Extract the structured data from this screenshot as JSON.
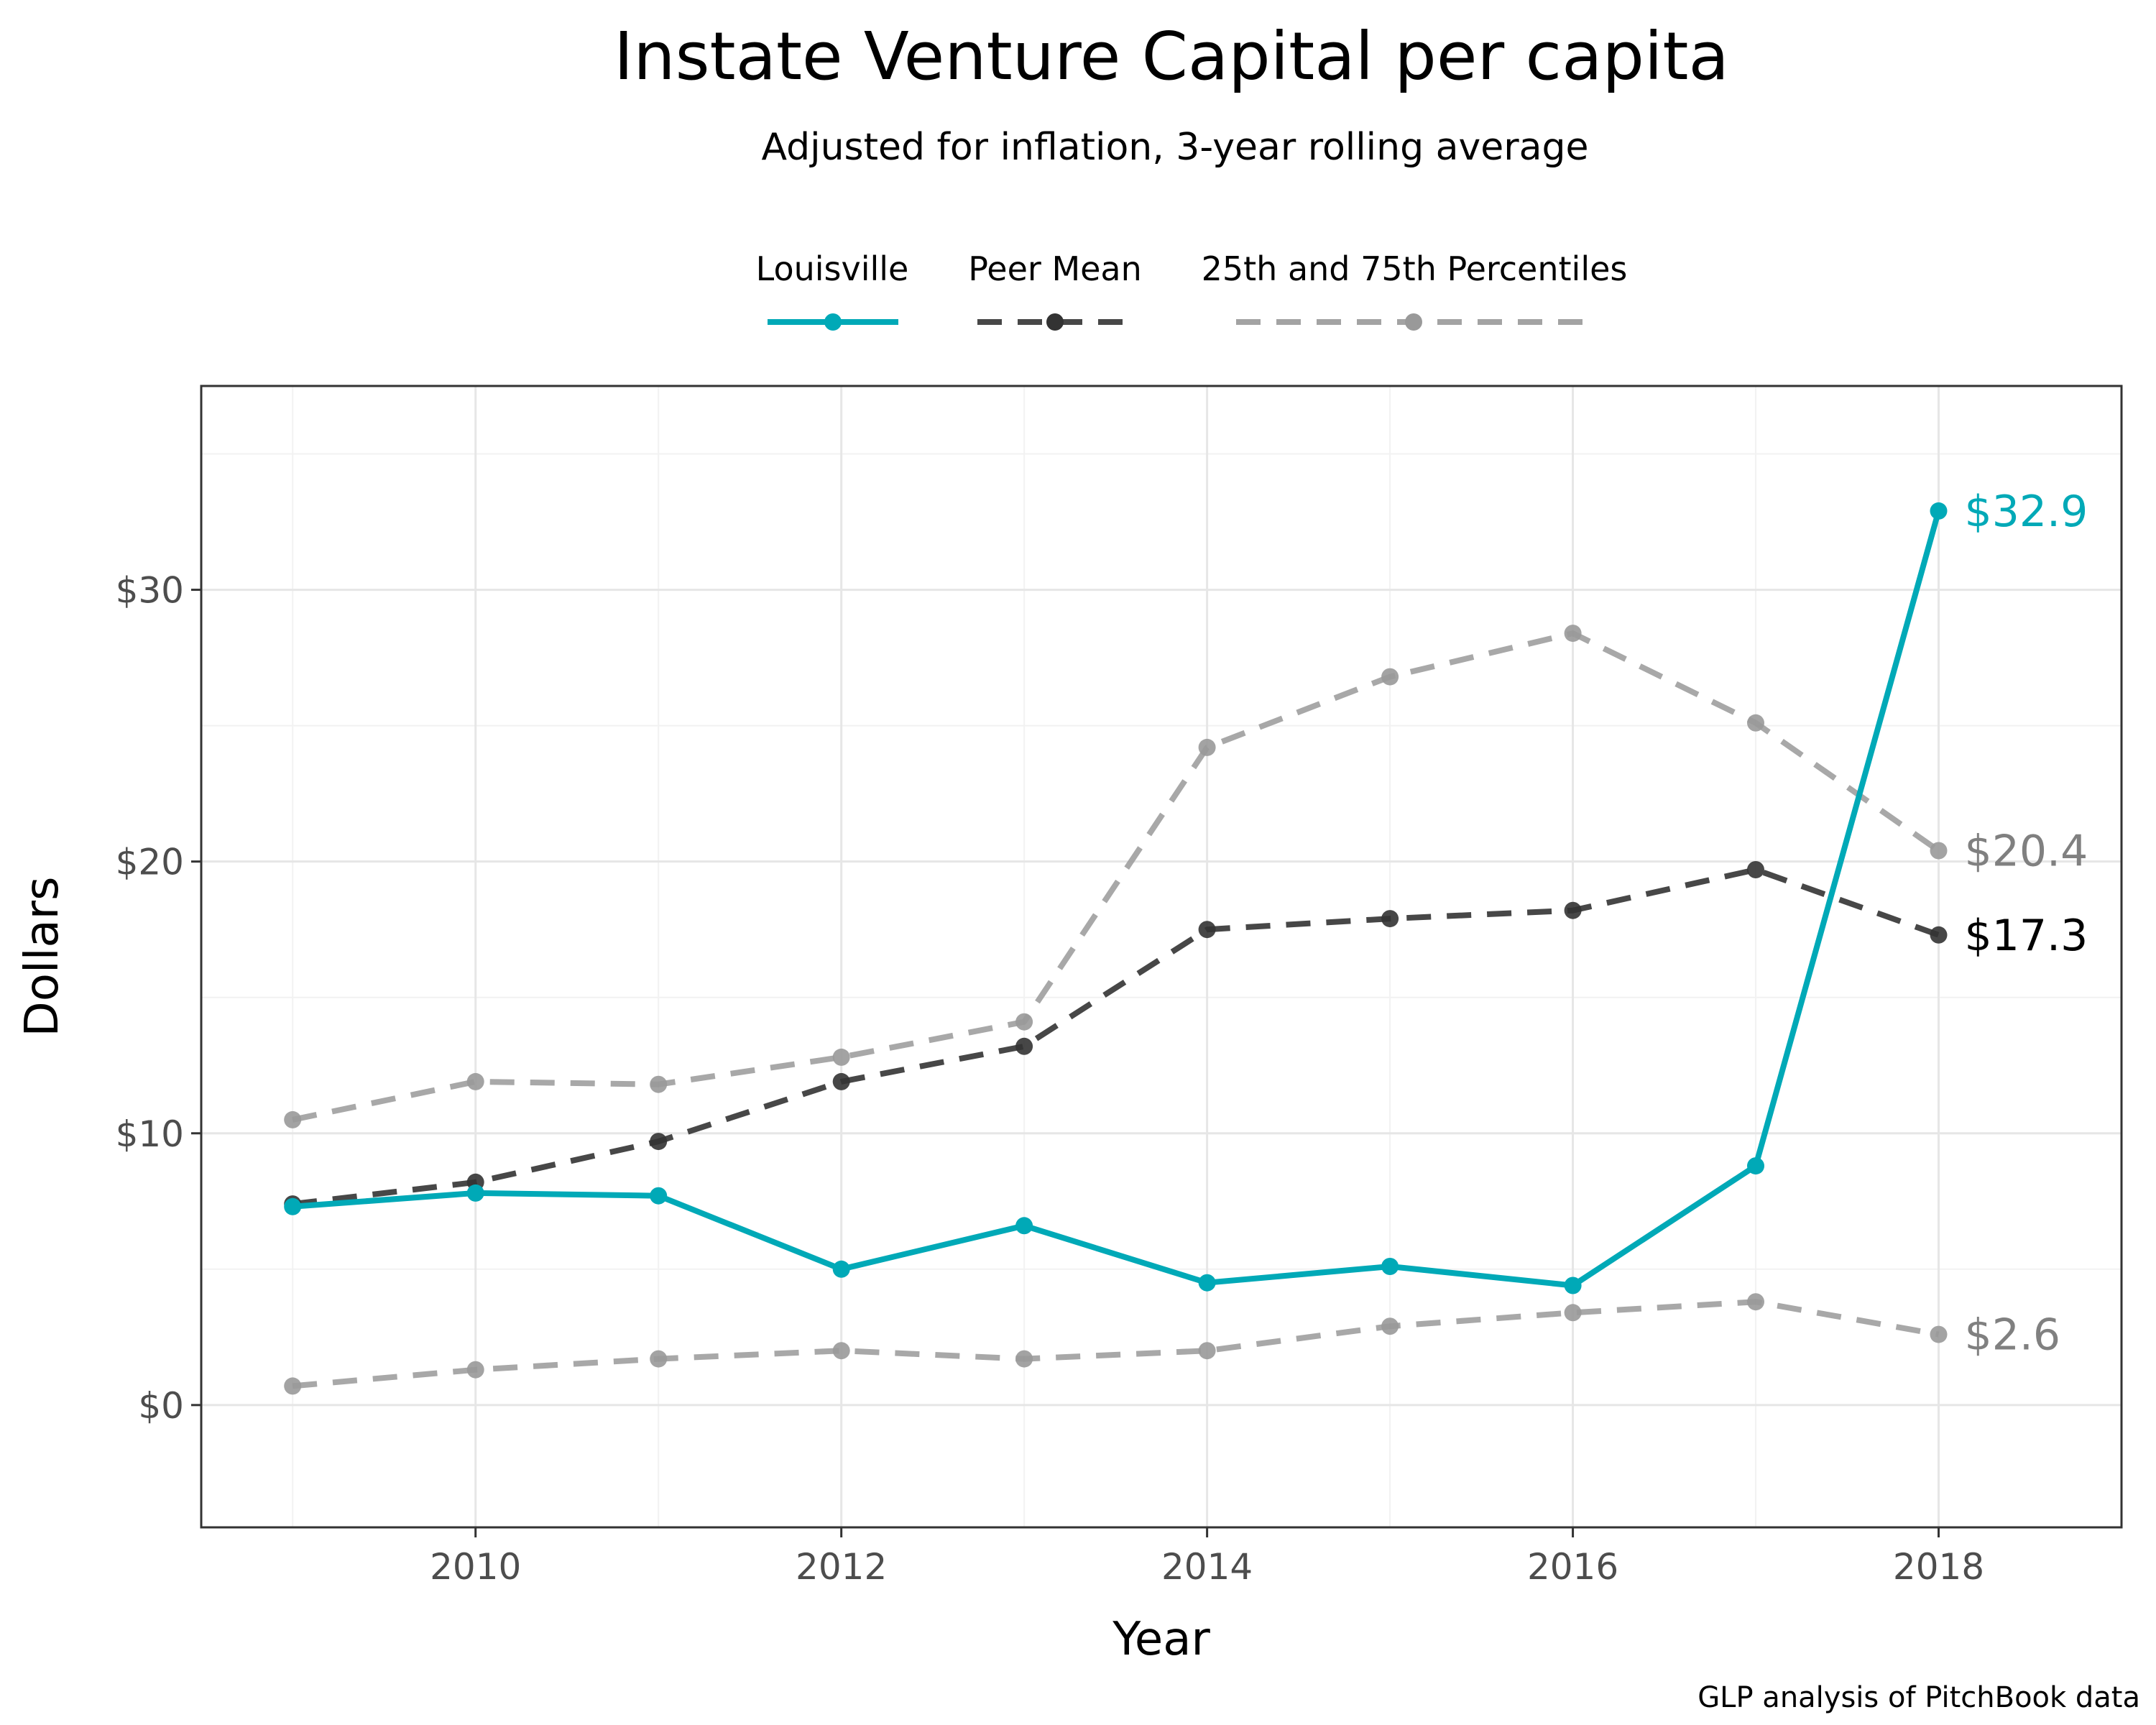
{
  "chart_data": {
    "type": "line",
    "title": "Instate Venture Capital per capita",
    "subtitle": "Adjusted for inflation, 3-year rolling average",
    "xlabel": "Year",
    "ylabel": "Dollars",
    "caption": "GLP analysis of PitchBook data",
    "x": [
      2009,
      2010,
      2011,
      2012,
      2013,
      2014,
      2015,
      2016,
      2017,
      2018
    ],
    "xlim": [
      2008.5,
      2019.0
    ],
    "ylim": [
      -4.5,
      37.5
    ],
    "x_ticks": [
      2010,
      2012,
      2014,
      2016,
      2018
    ],
    "x_tick_labels": [
      "2010",
      "2012",
      "2014",
      "2016",
      "2018"
    ],
    "y_ticks": [
      0,
      10,
      20,
      30
    ],
    "y_tick_labels": [
      "$0",
      "$10",
      "$20",
      "$30"
    ],
    "grid": true,
    "legend_position": "top",
    "series": [
      {
        "name": "Louisville",
        "legend_label": "Louisville",
        "color": "#00a9b7",
        "line_style": "solid",
        "values": [
          7.3,
          7.8,
          7.7,
          5.0,
          6.6,
          4.5,
          5.1,
          4.4,
          8.8,
          32.9
        ],
        "end_label": "$32.9"
      },
      {
        "name": "Peer Mean",
        "legend_label": "Peer Mean",
        "color": "#333333",
        "line_style": "dashed",
        "values": [
          7.4,
          8.2,
          9.7,
          11.9,
          13.2,
          17.5,
          17.9,
          18.2,
          19.7,
          17.3
        ],
        "end_label": "$17.3"
      },
      {
        "name": "75th Percentile",
        "legend_label": "25th and 75th Percentiles",
        "color": "#999999",
        "line_style": "dashed",
        "values": [
          10.5,
          11.9,
          11.8,
          12.8,
          14.1,
          24.2,
          26.8,
          28.4,
          25.1,
          20.4
        ],
        "end_label": "$20.4"
      },
      {
        "name": "25th Percentile",
        "legend_label": "",
        "color": "#999999",
        "line_style": "dashed",
        "values": [
          0.7,
          1.3,
          1.7,
          2.0,
          1.7,
          2.0,
          2.9,
          3.4,
          3.8,
          2.6
        ],
        "end_label": "$2.6"
      }
    ]
  }
}
